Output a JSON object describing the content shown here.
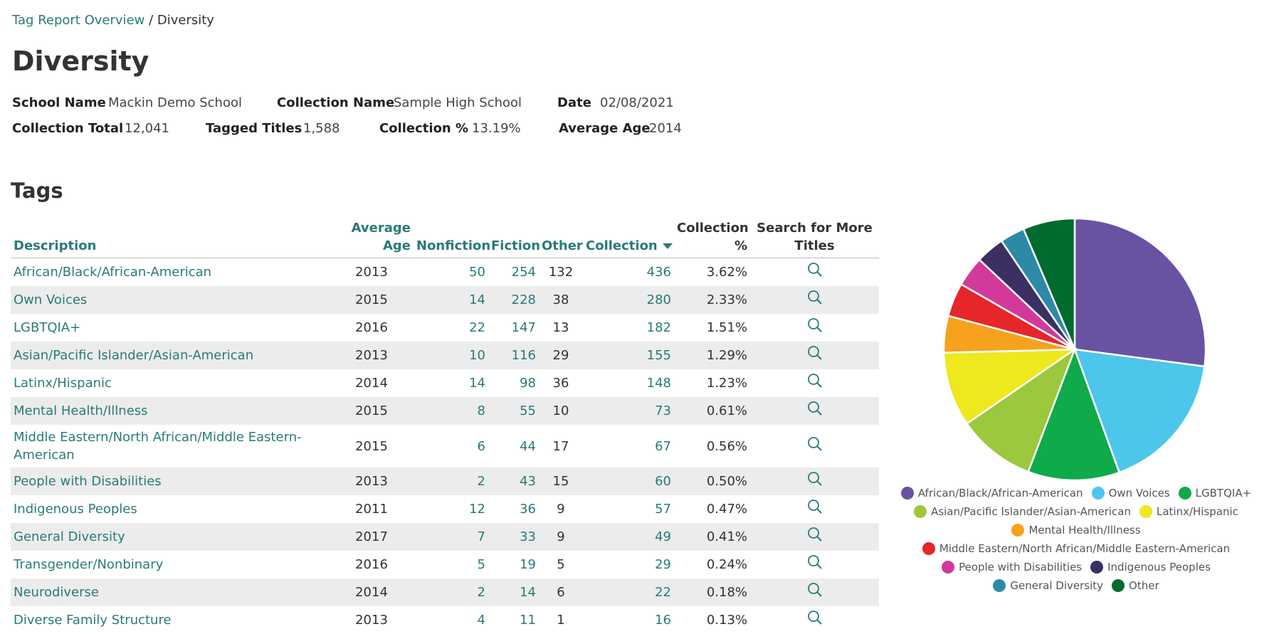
{
  "breadcrumb": {
    "link": "Tag Report Overview",
    "separator": "/",
    "current": "Diversity"
  },
  "title": "Diversity",
  "info": [
    {
      "label": "School Name",
      "value": "Mackin Demo School"
    },
    {
      "label": "Collection Name",
      "value": "Sample High School"
    },
    {
      "label": "Date",
      "value": "02/08/2021"
    },
    {
      "label": "Collection Total",
      "value": "12,041"
    },
    {
      "label": "Tagged Titles",
      "value": "1,588"
    },
    {
      "label": "Collection %",
      "value": "13.19%"
    },
    {
      "label": "Average Age",
      "value": "2014"
    }
  ],
  "section_title": "Tags",
  "table": {
    "columns": [
      "Description",
      "Average Age",
      "Nonfiction",
      "Fiction",
      "Other",
      "Collection",
      "Collection %",
      "Search for More Titles"
    ],
    "rows": [
      [
        "African/Black/African-American",
        2013,
        50,
        254,
        132,
        436,
        "3.62%"
      ],
      [
        "Own Voices",
        2015,
        14,
        228,
        38,
        280,
        "2.33%"
      ],
      [
        "LGBTQIA+",
        2016,
        22,
        147,
        13,
        182,
        "1.51%"
      ],
      [
        "Asian/Pacific Islander/Asian-American",
        2013,
        10,
        116,
        29,
        155,
        "1.29%"
      ],
      [
        "Latinx/Hispanic",
        2014,
        14,
        98,
        36,
        148,
        "1.23%"
      ],
      [
        "Mental Health/Illness",
        2015,
        8,
        55,
        10,
        73,
        "0.61%"
      ],
      [
        "Middle Eastern/North African/Middle Eastern-American",
        2015,
        6,
        44,
        17,
        67,
        "0.56%"
      ],
      [
        "People with Disabilities",
        2013,
        2,
        43,
        15,
        60,
        "0.50%"
      ],
      [
        "Indigenous Peoples",
        2011,
        12,
        36,
        9,
        57,
        "0.47%"
      ],
      [
        "General Diversity",
        2017,
        7,
        33,
        9,
        49,
        "0.41%"
      ],
      [
        "Transgender/Nonbinary",
        2016,
        5,
        19,
        5,
        29,
        "0.24%"
      ],
      [
        "Neurodiverse",
        2014,
        2,
        14,
        6,
        22,
        "0.18%"
      ],
      [
        "Diverse Family Structure",
        2013,
        4,
        11,
        1,
        16,
        "0.13%"
      ]
    ]
  },
  "chart_data": {
    "type": "pie",
    "categories": [
      "African/Black/African-American",
      "Own Voices",
      "LGBTQIA+",
      "Asian/Pacific Islander/Asian-American",
      "Latinx/Hispanic",
      "Mental Health/Illness",
      "Middle Eastern/North African/Middle Eastern-American",
      "People with Disabilities",
      "Indigenous Peoples",
      "General Diversity",
      "Other"
    ],
    "values": [
      436,
      280,
      182,
      155,
      148,
      73,
      67,
      60,
      57,
      49,
      103
    ],
    "colors": [
      "#6a52a3",
      "#4dc6eb",
      "#0faa4a",
      "#9bc83c",
      "#eee81e",
      "#f6a21d",
      "#e5262a",
      "#d2399b",
      "#3b2f64",
      "#2c8aa7",
      "#006b2f"
    ]
  }
}
